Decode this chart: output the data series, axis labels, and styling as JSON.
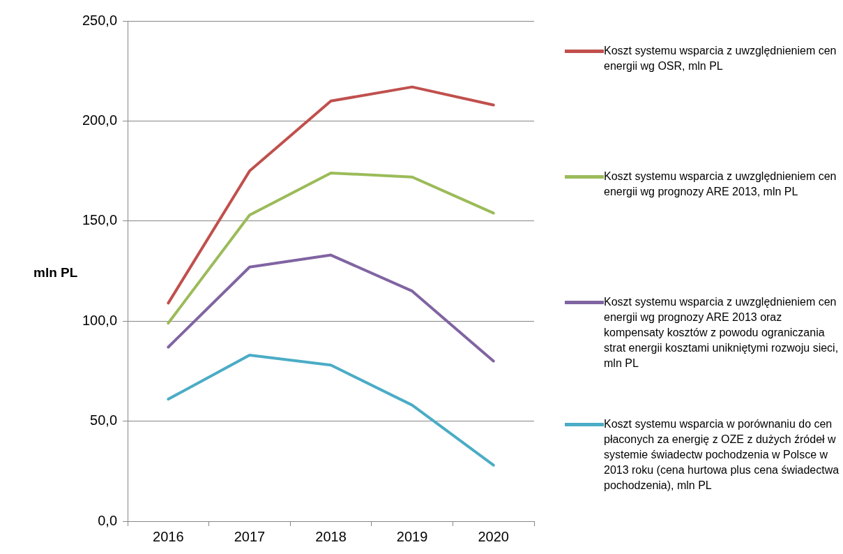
{
  "chart_data": {
    "type": "line",
    "ylabel": "mln PL",
    "categories": [
      "2016",
      "2017",
      "2018",
      "2019",
      "2020"
    ],
    "series": [
      {
        "name": "Koszt systemu wsparcia z uwzględnieniem cen energii wg OSR, mln PL",
        "color": "#c0504d",
        "values": [
          109,
          175,
          210,
          217,
          208
        ]
      },
      {
        "name": "Koszt systemu wsparcia z uwzględnieniem cen energii wg prognozy ARE 2013, mln PL",
        "color": "#9bbb59",
        "values": [
          99,
          153,
          174,
          172,
          154
        ]
      },
      {
        "name": "Koszt systemu wsparcia z uwzględnieniem cen energii wg prognozy ARE 2013 oraz kompensaty kosztów z powodu ograniczania strat energii kosztami unikniętymi rozwoju sieci, mln PL",
        "color": "#8064a2",
        "values": [
          87,
          127,
          133,
          115,
          80
        ]
      },
      {
        "name": "Koszt systemu wsparcia w porównaniu do cen płaconych za energię z OZE z dużych źródeł w systemie świadectw pochodzenia w Polsce w 2013 roku (cena hurtowa plus cena świadectwa pochodzenia), mln PL",
        "color": "#4bacc6",
        "values": [
          61,
          83,
          78,
          58,
          28
        ]
      }
    ],
    "ylim": [
      0,
      250
    ],
    "yticks": [
      {
        "value": 0,
        "label": "0,0"
      },
      {
        "value": 50,
        "label": "50,0"
      },
      {
        "value": 100,
        "label": "100,0"
      },
      {
        "value": 150,
        "label": "150,0"
      },
      {
        "value": 200,
        "label": "200,0"
      },
      {
        "value": 250,
        "label": "250,0"
      }
    ],
    "grid": "y",
    "legend": "right",
    "marker": "none",
    "line_style": "solid"
  }
}
